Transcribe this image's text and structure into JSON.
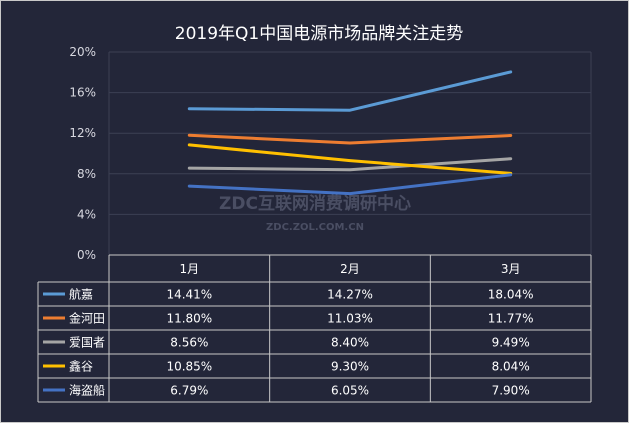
{
  "chart_data": {
    "type": "line",
    "title": "2019年Q1中国电源市场品牌关注走势",
    "categories": [
      "1月",
      "2月",
      "3月"
    ],
    "ylim": [
      0,
      20
    ],
    "yticks": [
      "0%",
      "4%",
      "8%",
      "12%",
      "16%",
      "20%"
    ],
    "ytick_values": [
      0,
      4,
      8,
      12,
      16,
      20
    ],
    "series": [
      {
        "name": "航嘉",
        "color": "#5b9bd5",
        "values": [
          14.41,
          14.27,
          18.04
        ],
        "labels": [
          "14.41%",
          "14.27%",
          "18.04%"
        ]
      },
      {
        "name": "金河田",
        "color": "#ed7d31",
        "values": [
          11.8,
          11.03,
          11.77
        ],
        "labels": [
          "11.80%",
          "11.03%",
          "11.77%"
        ]
      },
      {
        "name": "爱国者",
        "color": "#a5a5a5",
        "values": [
          8.56,
          8.4,
          9.49
        ],
        "labels": [
          "8.56%",
          "8.40%",
          "9.49%"
        ]
      },
      {
        "name": "鑫谷",
        "color": "#ffc000",
        "values": [
          10.85,
          9.3,
          8.04
        ],
        "labels": [
          "10.85%",
          "9.30%",
          "8.04%"
        ]
      },
      {
        "name": "海盗船",
        "color": "#4472c4",
        "values": [
          6.79,
          6.05,
          7.9
        ],
        "labels": [
          "6.79%",
          "6.05%",
          "7.90%"
        ]
      }
    ],
    "grid": true,
    "legend": "data-table"
  },
  "watermark": {
    "line1": "ZDC互联网消费调研中心",
    "line2": "ZDC.ZOL.COM.CN"
  }
}
